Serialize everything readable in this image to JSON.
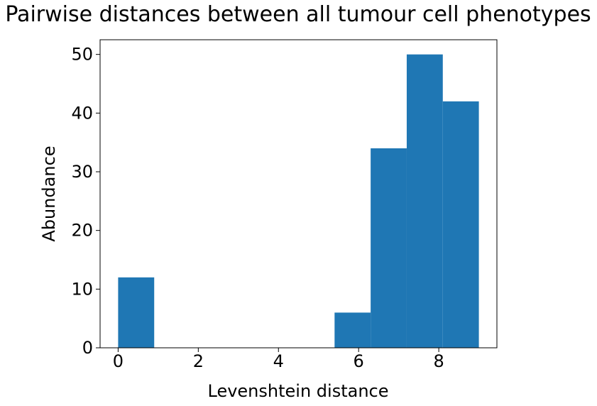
{
  "chart_data": {
    "type": "bar",
    "histogram": true,
    "title": "Pairwise distances between all tumour cell phenotypes",
    "xlabel": "Levenshtein distance",
    "ylabel": "Abundance",
    "xlim": [
      -0.45,
      9.45
    ],
    "ylim": [
      0,
      52.5
    ],
    "xticks": [
      0,
      2,
      4,
      6,
      8
    ],
    "yticks": [
      0,
      10,
      20,
      30,
      40,
      50
    ],
    "bins": [
      {
        "x0": 0.0,
        "x1": 0.9,
        "value": 12
      },
      {
        "x0": 0.9,
        "x1": 1.8,
        "value": 0
      },
      {
        "x0": 1.8,
        "x1": 2.7,
        "value": 0
      },
      {
        "x0": 2.7,
        "x1": 3.6,
        "value": 0
      },
      {
        "x0": 3.6,
        "x1": 4.5,
        "value": 0
      },
      {
        "x0": 4.5,
        "x1": 5.4,
        "value": 0
      },
      {
        "x0": 5.4,
        "x1": 6.3,
        "value": 6
      },
      {
        "x0": 6.3,
        "x1": 7.2,
        "value": 34
      },
      {
        "x0": 7.2,
        "x1": 8.1,
        "value": 50
      },
      {
        "x0": 8.1,
        "x1": 9.0,
        "value": 42
      }
    ],
    "bar_color": "#1f77b4",
    "grid": false
  }
}
